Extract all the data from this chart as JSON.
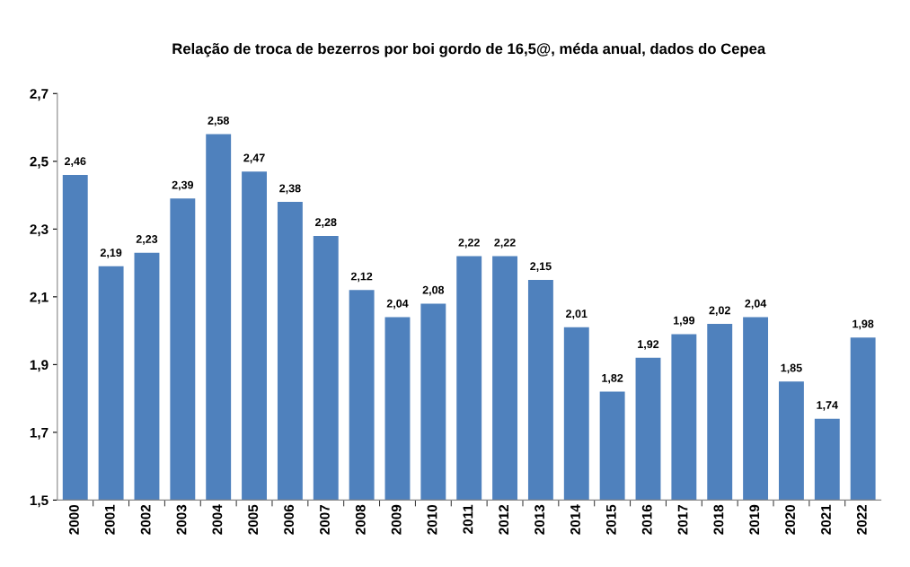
{
  "chart_data": {
    "type": "bar",
    "title": "Relação de troca de bezerros por boi gordo de 16,5@, méda anual, dados do Cepea",
    "categories": [
      "2000",
      "2001",
      "2002",
      "2003",
      "2004",
      "2005",
      "2006",
      "2007",
      "2008",
      "2009",
      "2010",
      "2011",
      "2012",
      "2013",
      "2014",
      "2015",
      "2016",
      "2017",
      "2018",
      "2019",
      "2020",
      "2021",
      "2022"
    ],
    "values": [
      2.46,
      2.19,
      2.23,
      2.39,
      2.58,
      2.47,
      2.38,
      2.28,
      2.12,
      2.04,
      2.08,
      2.22,
      2.22,
      2.15,
      2.01,
      1.82,
      1.92,
      1.99,
      2.02,
      2.04,
      1.85,
      1.74,
      1.98
    ],
    "value_labels": [
      "2,46",
      "2,19",
      "2,23",
      "2,39",
      "2,58",
      "2,47",
      "2,38",
      "2,28",
      "2,12",
      "2,04",
      "2,08",
      "2,22",
      "2,22",
      "2,15",
      "2,01",
      "1,82",
      "1,92",
      "1,99",
      "2,02",
      "2,04",
      "1,85",
      "1,74",
      "1,98"
    ],
    "color": "#4f81bd",
    "ylim": [
      1.5,
      2.7
    ],
    "yticks": [
      {
        "value": 1.5,
        "label": "1,5"
      },
      {
        "value": 1.7,
        "label": "1,7"
      },
      {
        "value": 1.9,
        "label": "1,9"
      },
      {
        "value": 2.1,
        "label": "2,1"
      },
      {
        "value": 2.3,
        "label": "2,3"
      },
      {
        "value": 2.5,
        "label": "2,5"
      },
      {
        "value": 2.7,
        "label": "2,7"
      }
    ],
    "grid": false
  }
}
